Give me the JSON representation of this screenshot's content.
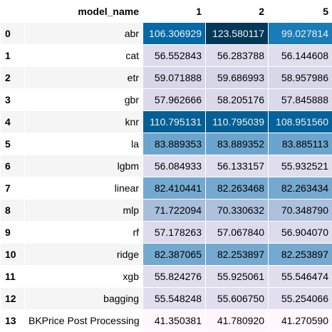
{
  "chart_data": {
    "type": "table",
    "columns": [
      "model_name",
      "1",
      "2",
      "5"
    ],
    "color_scale": {
      "low": "#fff7fb",
      "high": "#023858",
      "dark_text_color": "#000000",
      "light_text_color": "#f1f1f1"
    },
    "rows": [
      {
        "index": "0",
        "model_name": "abr",
        "values": [
          "106.306929",
          "123.580117",
          "99.027814"
        ]
      },
      {
        "index": "1",
        "model_name": "cat",
        "values": [
          "56.552843",
          "56.283788",
          "56.144608"
        ]
      },
      {
        "index": "2",
        "model_name": "etr",
        "values": [
          "59.071888",
          "59.686993",
          "58.957986"
        ]
      },
      {
        "index": "3",
        "model_name": "gbr",
        "values": [
          "57.962666",
          "58.205176",
          "57.845888"
        ]
      },
      {
        "index": "4",
        "model_name": "knr",
        "values": [
          "110.795131",
          "110.795039",
          "108.951560"
        ]
      },
      {
        "index": "5",
        "model_name": "la",
        "values": [
          "83.889353",
          "83.889352",
          "83.885113"
        ]
      },
      {
        "index": "6",
        "model_name": "lgbm",
        "values": [
          "56.084933",
          "56.133157",
          "55.932521"
        ]
      },
      {
        "index": "7",
        "model_name": "linear",
        "values": [
          "82.410441",
          "82.263468",
          "82.263434"
        ]
      },
      {
        "index": "8",
        "model_name": "mlp",
        "values": [
          "71.722094",
          "70.330632",
          "70.348790"
        ]
      },
      {
        "index": "9",
        "model_name": "rf",
        "values": [
          "57.178263",
          "57.067840",
          "56.904070"
        ]
      },
      {
        "index": "10",
        "model_name": "ridge",
        "values": [
          "82.387065",
          "82.253897",
          "82.253897"
        ]
      },
      {
        "index": "11",
        "model_name": "xgb",
        "values": [
          "55.824276",
          "55.925061",
          "55.546474"
        ]
      },
      {
        "index": "12",
        "model_name": "bagging",
        "values": [
          "55.548248",
          "55.606750",
          "55.254066"
        ]
      },
      {
        "index": "13",
        "model_name": "BKPrice Post Processing",
        "values": [
          "41.350381",
          "41.780920",
          "41.270590"
        ]
      }
    ]
  }
}
